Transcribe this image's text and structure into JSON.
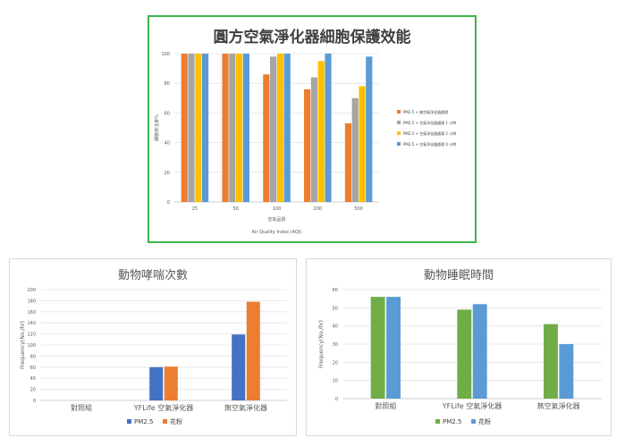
{
  "chart_data": [
    {
      "type": "bar",
      "title": "圓方空氣淨化器細胞保護效能",
      "xlabel": "空氣品質",
      "xlabel2": "Air Quality Index (AQI)",
      "ylabel": "細胞存活率%",
      "ylim": [
        0,
        100
      ],
      "yticks": [
        0,
        20,
        40,
        60,
        80,
        100
      ],
      "categories": [
        "25",
        "50",
        "100",
        "200",
        "500"
      ],
      "legend_position": "right",
      "grid": true,
      "series": [
        {
          "name": "PM2.5 + 無空氣淨化器處理",
          "color": "#ed7d31",
          "values": [
            100,
            100,
            86,
            76,
            53
          ]
        },
        {
          "name": "PM2.5 + 空氣淨化器處理 1 小時",
          "color": "#a5a5a5",
          "values": [
            100,
            100,
            98,
            84,
            70
          ]
        },
        {
          "name": "PM2.5 + 空氣淨化器處理 2 小時",
          "color": "#ffc000",
          "values": [
            100,
            100,
            100,
            95,
            78
          ]
        },
        {
          "name": "PM2.5 + 空氣淨化器處理 4 小時",
          "color": "#5b9bd5",
          "values": [
            100,
            100,
            100,
            100,
            98
          ]
        }
      ]
    },
    {
      "type": "bar",
      "title": "動物哮喘次數",
      "ylabel": "Frequency(No./hr)",
      "ylim": [
        0,
        200
      ],
      "yticks": [
        0,
        20,
        40,
        60,
        80,
        100,
        120,
        140,
        160,
        180,
        200
      ],
      "categories": [
        "對照組",
        "YFLife 空氣淨化器",
        "無空氣淨化器"
      ],
      "legend_position": "bottom",
      "grid": true,
      "series": [
        {
          "name": "PM2.5",
          "color": "#4472c4",
          "values": [
            0,
            60,
            119
          ]
        },
        {
          "name": "花粉",
          "color": "#ed7d31",
          "values": [
            0,
            61,
            178
          ]
        }
      ]
    },
    {
      "type": "bar",
      "title": "動物睡眠時間",
      "ylabel": "Frequency(No./hr)",
      "ylim": [
        0,
        60
      ],
      "yticks": [
        0,
        10,
        20,
        30,
        40,
        50,
        60
      ],
      "categories": [
        "對照組",
        "YFLife 空氣淨化器",
        "無空氣淨化器"
      ],
      "legend_position": "bottom",
      "grid": true,
      "series": [
        {
          "name": "PM2.5",
          "color": "#70ad47",
          "values": [
            56,
            49,
            41
          ]
        },
        {
          "name": "花粉",
          "color": "#5b9bd5",
          "values": [
            56,
            52,
            30
          ]
        }
      ]
    }
  ]
}
